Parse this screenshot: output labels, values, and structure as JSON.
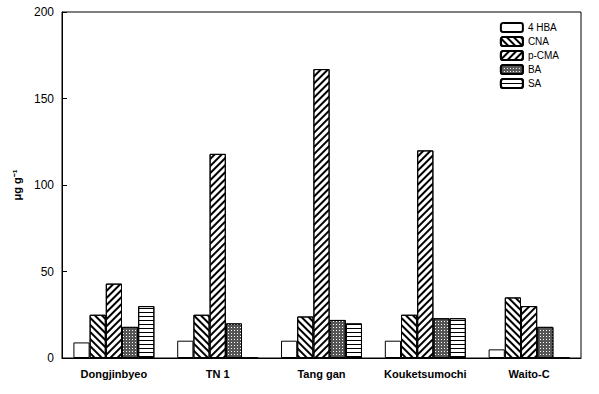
{
  "chart_data": {
    "type": "bar",
    "y_label": "μg g⁻¹",
    "categories": [
      "Dongjinbyeo",
      "TN 1",
      "Tang gan",
      "Kouketsumochi",
      "Waito-C"
    ],
    "series": [
      {
        "name": "4 HBA",
        "color": "#ffffff",
        "values": [
          9,
          10,
          10,
          10,
          5
        ]
      },
      {
        "name": "CNA",
        "color": "#ffffff",
        "values": [
          25,
          25,
          24,
          25,
          35
        ]
      },
      {
        "name": "p-CMA",
        "color": "#ffffff",
        "values": [
          43,
          118,
          167,
          120,
          30
        ]
      },
      {
        "name": "BA",
        "color": "#555555",
        "values": [
          18,
          20,
          22,
          23,
          18
        ]
      },
      {
        "name": "SA",
        "color": "#ffffff",
        "values": [
          30,
          0,
          20,
          23,
          0
        ]
      }
    ],
    "ylim": [
      0,
      200
    ],
    "yticks": [
      0,
      50,
      100,
      150,
      200
    ],
    "grid": false,
    "legend": "upper right"
  }
}
